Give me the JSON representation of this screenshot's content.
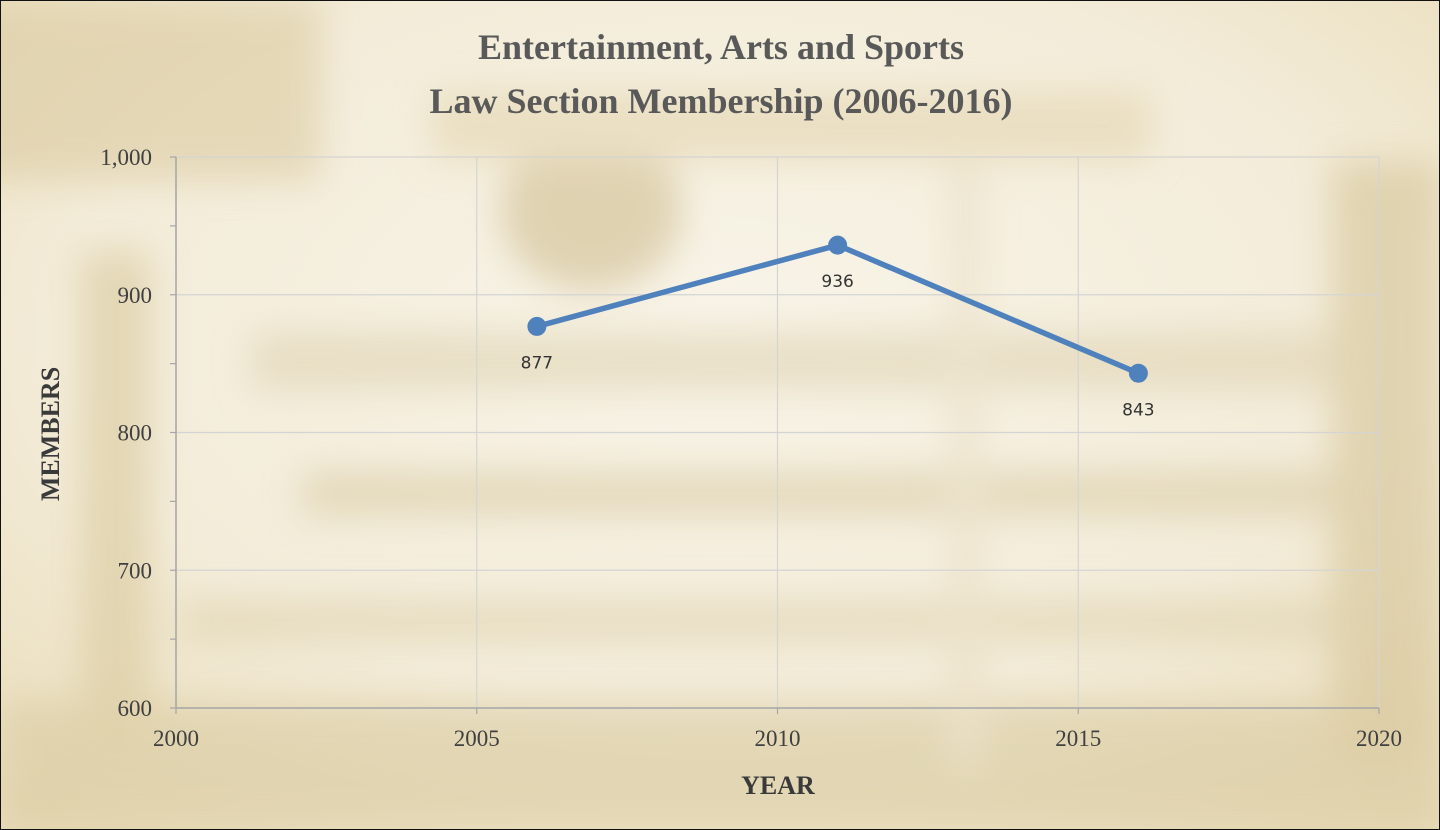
{
  "chart_data": {
    "type": "scatter",
    "title_lines": [
      "Entertainment, Arts and Sports",
      "Law Section Membership (2006-2016)"
    ],
    "xlabel": "YEAR",
    "ylabel": "MEMBERS",
    "xlim": [
      2000,
      2020
    ],
    "ylim": [
      600,
      1000
    ],
    "x_ticks": [
      2000,
      2005,
      2010,
      2015,
      2020
    ],
    "x_tick_labels": [
      "2000",
      "2005",
      "2010",
      "2015",
      "2020"
    ],
    "y_ticks": [
      600,
      700,
      800,
      900,
      1000
    ],
    "y_tick_labels": [
      "600",
      "700",
      "800",
      "900",
      "1,000"
    ],
    "y_minor_step": 50,
    "grid": true,
    "series": [
      {
        "color": "#4f81bd",
        "marker": "circle",
        "connected": true,
        "points": [
          {
            "x": 2006,
            "y": 877,
            "label": "877"
          },
          {
            "x": 2011,
            "y": 936,
            "label": "936"
          },
          {
            "x": 2016,
            "y": 843,
            "label": "843"
          }
        ]
      }
    ],
    "background": {
      "tint": "#f3ecd9",
      "accent": "#d8c9a0"
    }
  }
}
